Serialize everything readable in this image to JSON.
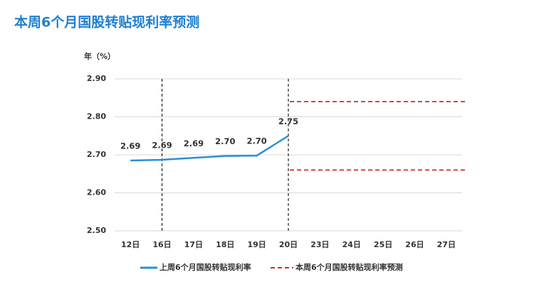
{
  "chart_data": {
    "type": "line",
    "title": "本周6个月国股转贴现利率预测",
    "y_label": "年（%）",
    "categories": [
      "12日",
      "16日",
      "17日",
      "18日",
      "19日",
      "20日",
      "23日",
      "24日",
      "25日",
      "26日",
      "27日"
    ],
    "series": [
      {
        "name": "上周6个月国股转贴现利率",
        "color": "#2a8fd6",
        "values": [
          2.685,
          2.687,
          2.692,
          2.697,
          2.698,
          2.75,
          null,
          null,
          null,
          null,
          null
        ],
        "value_labels": [
          "2.69",
          "2.69",
          "2.69",
          "2.70",
          "2.70",
          "2.75",
          null,
          null,
          null,
          null,
          null
        ]
      }
    ],
    "forecast": {
      "name": "本周6个月国股转贴现利率预测",
      "color": "#d42a2a",
      "values": [
        2.84,
        2.66
      ]
    },
    "vlines": [
      1,
      5
    ],
    "ylim": [
      2.5,
      2.9
    ],
    "yticks": [
      {
        "value": 2.5,
        "label": "2.50"
      },
      {
        "value": 2.6,
        "label": "2.60"
      },
      {
        "value": 2.7,
        "label": "2.70"
      },
      {
        "value": 2.8,
        "label": "2.80"
      },
      {
        "value": 2.9,
        "label": "2.90"
      }
    ],
    "grid": true
  }
}
